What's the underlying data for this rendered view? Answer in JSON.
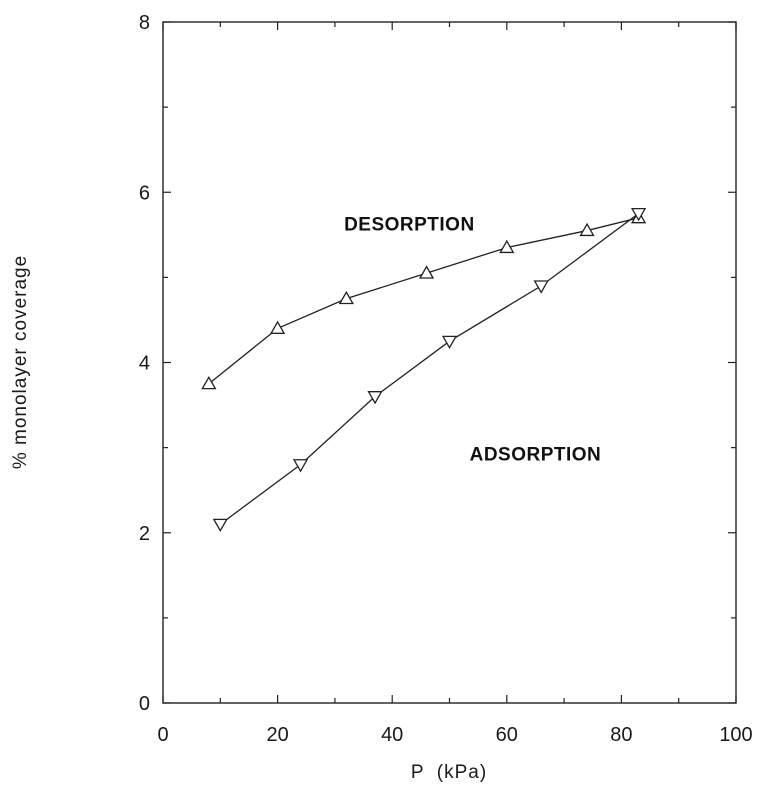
{
  "chart_data": {
    "type": "line",
    "title": "",
    "xlabel": "P  (kPa)",
    "ylabel": "% monolayer coverage",
    "xlim": [
      0,
      100
    ],
    "ylim": [
      0,
      8
    ],
    "xticks": [
      0,
      20,
      40,
      60,
      80,
      100
    ],
    "yticks": [
      0,
      2,
      4,
      6,
      8
    ],
    "grid": false,
    "legend": "none",
    "series": [
      {
        "marker": "triangle-up",
        "x": [
          8,
          20,
          32,
          46,
          60,
          74,
          83
        ],
        "y": [
          3.75,
          4.4,
          4.75,
          5.05,
          5.35,
          5.55,
          5.7
        ]
      },
      {
        "marker": "triangle-down",
        "x": [
          10,
          24,
          37,
          50,
          66,
          83
        ],
        "y": [
          2.1,
          2.8,
          3.6,
          4.25,
          4.9,
          5.75
        ]
      }
    ],
    "annotations": [
      {
        "text": "DESORPTION",
        "x": 43,
        "y": 5.55
      },
      {
        "text": "ADSORPTION",
        "x": 65,
        "y": 2.85
      }
    ]
  }
}
